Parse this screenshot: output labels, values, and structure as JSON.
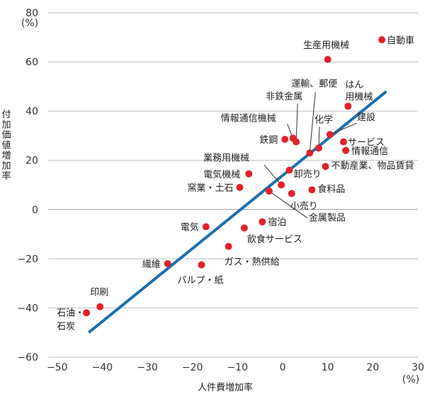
{
  "chart_data": {
    "type": "scatter",
    "xlabel": "人件費増加率",
    "ylabel": "付加価値増加率",
    "x_unit": "(%)",
    "y_unit": "(%)",
    "xlim": [
      -52,
      30
    ],
    "ylim": [
      -60,
      80
    ],
    "x_ticks": [
      -50,
      -40,
      -30,
      -20,
      -10,
      0,
      10,
      20,
      30
    ],
    "y_ticks": [
      -60,
      -40,
      -20,
      0,
      20,
      40,
      60,
      80
    ],
    "grid": "horizontal",
    "point_color": "#e2222b",
    "line_color": "#1a6fb0",
    "trend_line": {
      "x": [
        -43,
        23
      ],
      "y": [
        -50,
        48
      ]
    },
    "points": [
      {
        "label": "自動車",
        "x": 22,
        "y": 69
      },
      {
        "label": "生産用機械",
        "x": 10,
        "y": 61
      },
      {
        "label": "はん用機械",
        "x": 14.5,
        "y": 42
      },
      {
        "label": "運輸、郵便",
        "x": 6,
        "y": 23
      },
      {
        "label": "非鉄金属",
        "x": 3,
        "y": 27.5
      },
      {
        "label": "情報通信機械",
        "x": 2.3,
        "y": 29
      },
      {
        "label": "鉄鋼",
        "x": 0.5,
        "y": 28.5
      },
      {
        "label": "化学",
        "x": 8,
        "y": 25
      },
      {
        "label": "建設",
        "x": 10.5,
        "y": 30.5
      },
      {
        "label": "サービス",
        "x": 13.5,
        "y": 27.5
      },
      {
        "label": "情報通信",
        "x": 14,
        "y": 24
      },
      {
        "label": "不動産業、物品賃貸",
        "x": 9.5,
        "y": 17.5
      },
      {
        "label": "業務用機械",
        "x": -0.3,
        "y": 10
      },
      {
        "label": "卸売り",
        "x": 1.5,
        "y": 16
      },
      {
        "label": "電気機械",
        "x": -7.5,
        "y": 14.5
      },
      {
        "label": "食料品",
        "x": 6.5,
        "y": 8
      },
      {
        "label": "小売り",
        "x": 2,
        "y": 6.5
      },
      {
        "label": "窯業・土石",
        "x": -9.5,
        "y": 9
      },
      {
        "label": "金属製品",
        "x": -3,
        "y": 7.5
      },
      {
        "label": "宿泊",
        "x": -4.5,
        "y": -5
      },
      {
        "label": "電気",
        "x": -17,
        "y": -7
      },
      {
        "label": "飲食サービス",
        "x": -8.5,
        "y": -7.5
      },
      {
        "label": "ガス・熱供給",
        "x": -12,
        "y": -15
      },
      {
        "label": "繊維",
        "x": -25.5,
        "y": -22
      },
      {
        "label": "パルプ・紙",
        "x": -18,
        "y": -22.5
      },
      {
        "label": "印刷",
        "x": -40.5,
        "y": -39.5
      },
      {
        "label": "石油・石炭",
        "x": -43.5,
        "y": -42
      }
    ]
  }
}
